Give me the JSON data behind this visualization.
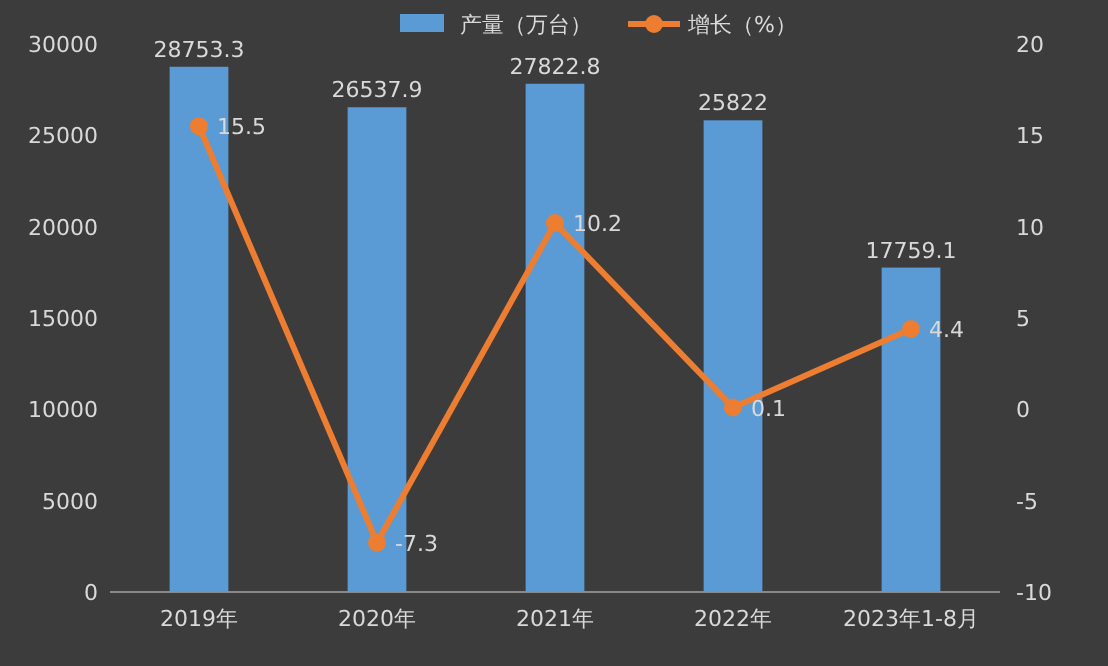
{
  "chart_data": {
    "type": "bar",
    "categories": [
      "2019年",
      "2020年",
      "2021年",
      "2022年",
      "2023年1-8月"
    ],
    "series": [
      {
        "name": "产量（万台）",
        "color": "#5b9bd5",
        "values": [
          28753.3,
          26537.9,
          27822.8,
          25822,
          17759.1
        ]
      },
      {
        "name": "增长（%）",
        "type": "line",
        "axis": "y2",
        "color": "#ed7d31",
        "values": [
          15.5,
          -7.3,
          10.2,
          0.1,
          4.4
        ]
      }
    ],
    "ylim": [
      0,
      30000
    ],
    "yticks": [
      0,
      5000,
      10000,
      15000,
      20000,
      25000,
      30000
    ],
    "y2lim": [
      -10,
      20
    ],
    "y2ticks": [
      -10,
      -5,
      0,
      5,
      10,
      15,
      20
    ],
    "data_labels": true,
    "legend": "top",
    "marker": "circle",
    "grid": false
  }
}
